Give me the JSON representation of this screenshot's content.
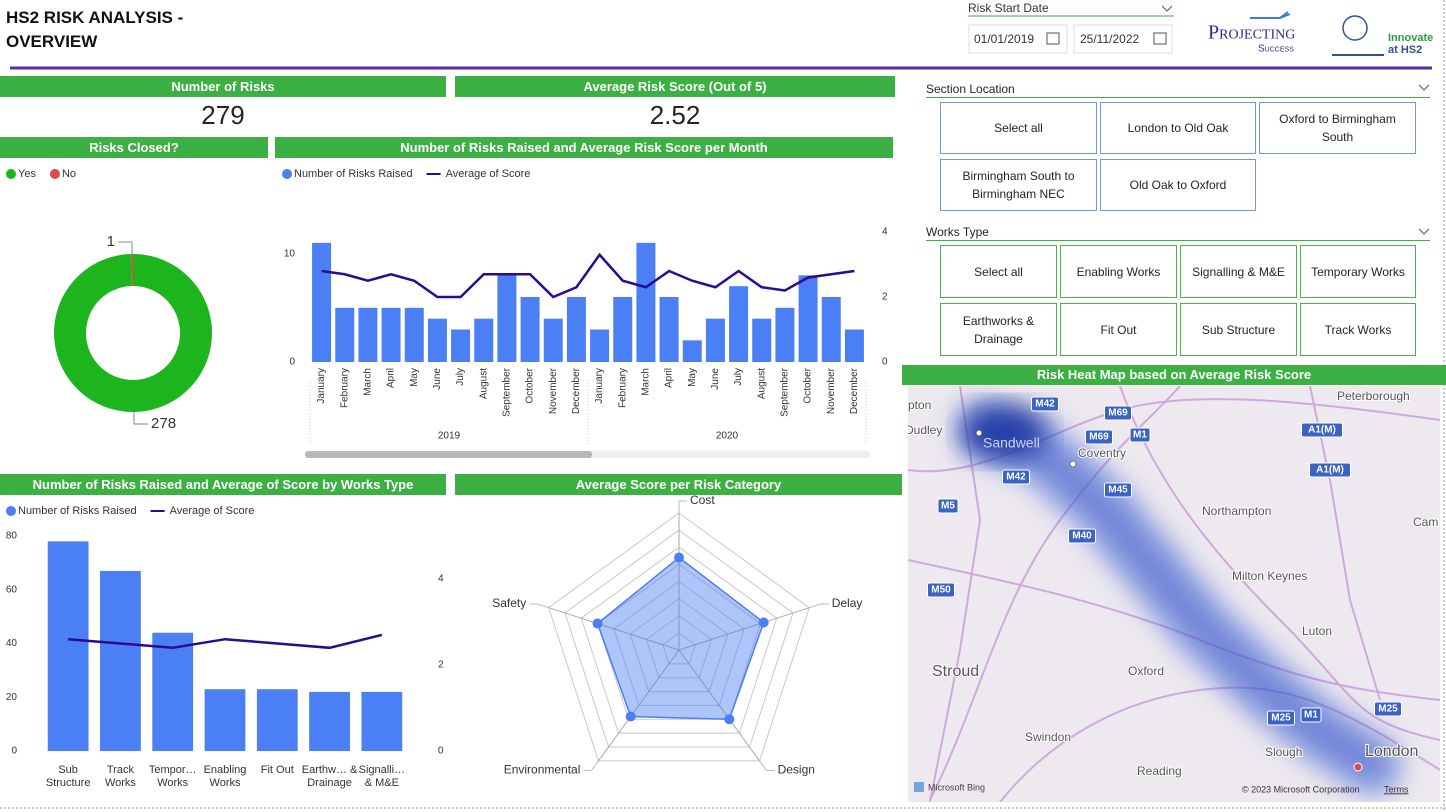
{
  "header": {
    "title": "HS2 RISK ANALYSIS - OVERVIEW",
    "date_slicer": {
      "label": "Risk Start Date",
      "start": "01/01/2019",
      "end": "25/11/2022"
    },
    "logos": [
      "Projecting",
      "Success",
      "Innovate",
      "at HS2"
    ]
  },
  "kpis": [
    {
      "title": "Number of Risks",
      "value": 279
    },
    {
      "title": "Average Risk Score (Out of 5)",
      "value": 2.52
    }
  ],
  "chart_data": [
    {
      "type": "donut",
      "title": "Risks Closed?",
      "categories": [
        "Yes",
        "No"
      ],
      "values": [
        278,
        1
      ],
      "colors": [
        "#1db51d",
        "#e0474f"
      ],
      "legend": "top-left"
    },
    {
      "type": "combo",
      "title": "Number of Risks Raised and Average Risk Score per Month",
      "categories": [
        "January",
        "February",
        "March",
        "April",
        "May",
        "June",
        "July",
        "August",
        "September",
        "October",
        "November",
        "December",
        "January",
        "February",
        "March",
        "April",
        "May",
        "June",
        "July",
        "August",
        "September",
        "October",
        "November",
        "December"
      ],
      "years": [
        "2019",
        "2020"
      ],
      "series": [
        {
          "name": "Number of Risks Raised",
          "color": "#4b7ff5",
          "values": [
            11,
            5,
            5,
            5,
            5,
            4,
            3,
            4,
            8,
            6,
            4,
            6,
            3,
            6,
            11,
            6,
            2,
            4,
            7,
            4,
            5,
            8,
            6,
            3
          ]
        },
        {
          "name": "Average of Score",
          "color": "#2b0a8f",
          "axis": "y2",
          "values": [
            2.8,
            2.7,
            2.5,
            2.7,
            2.5,
            2.0,
            2.0,
            2.7,
            2.7,
            2.7,
            2.0,
            2.3,
            3.3,
            2.5,
            2.3,
            2.8,
            2.5,
            2.3,
            2.8,
            2.3,
            2.2,
            2.6,
            2.7,
            2.8
          ]
        }
      ],
      "ylim": [
        0,
        12
      ],
      "yticks": [
        0,
        10
      ],
      "y2lim": [
        0,
        4
      ],
      "y2ticks": [
        0,
        2,
        4
      ],
      "legend": "top-left"
    },
    {
      "type": "combo",
      "title": "Number of Risks Raised and Average of Score by Works Type",
      "categories": [
        "Sub Structure",
        "Track Works",
        "Tempor… Works",
        "Enabling Works",
        "Fit Out",
        "Earthw… & Drainage",
        "Signalli… & M&E"
      ],
      "series": [
        {
          "name": "Number of Risks Raised",
          "color": "#4b7ff5",
          "values": [
            78,
            67,
            44,
            23,
            23,
            22,
            22
          ]
        },
        {
          "name": "Average of Score",
          "color": "#2b0a8f",
          "axis": "y2",
          "values": [
            2.6,
            2.5,
            2.4,
            2.6,
            2.5,
            2.4,
            2.7
          ]
        }
      ],
      "ylim": [
        0,
        80
      ],
      "yticks": [
        0,
        20,
        40,
        60,
        80
      ],
      "y2lim": [
        0,
        5
      ],
      "y2ticks": [
        0,
        2,
        4
      ],
      "legend": "top-left"
    },
    {
      "type": "radar",
      "title": "Average Score per Risk Category",
      "categories": [
        "Cost",
        "Delay",
        "Design",
        "Environmental",
        "Safety"
      ],
      "values": [
        2.7,
        2.6,
        2.5,
        2.4,
        2.5
      ],
      "color": "#4b7ff5",
      "rlim": [
        0,
        4
      ]
    }
  ],
  "slicers": [
    {
      "title": "Section Location",
      "options": [
        "Select all",
        "London to Old Oak",
        "Oxford to Birmingham South",
        "Birmingham South to Birmingham NEC",
        "Old Oak to Oxford"
      ]
    },
    {
      "title": "Works Type",
      "options": [
        "Select all",
        "Enabling Works",
        "Signalling & M&E",
        "Temporary Works",
        "Earthworks & Drainage",
        "Fit Out",
        "Sub Structure",
        "Track Works"
      ]
    }
  ],
  "map": {
    "title": "Risk Heat Map based on Average Risk Score",
    "places": [
      "pton",
      "Dudley",
      "Sandwell",
      "Coventry",
      "Peterborough",
      "Northampton",
      "Cam",
      "Milton Keynes",
      "Luton",
      "Stroud",
      "Oxford",
      "Swindon",
      "Reading",
      "Slough",
      "London"
    ],
    "roads": [
      "M42",
      "M69",
      "M1",
      "M69",
      "A1(M)",
      "A1(M)",
      "M42",
      "M45",
      "M5",
      "M40",
      "M50",
      "M25",
      "M1",
      "M25"
    ],
    "provider": "Microsoft Bing",
    "copyright": "© 2023 Microsoft Corporation",
    "terms": "Terms"
  }
}
